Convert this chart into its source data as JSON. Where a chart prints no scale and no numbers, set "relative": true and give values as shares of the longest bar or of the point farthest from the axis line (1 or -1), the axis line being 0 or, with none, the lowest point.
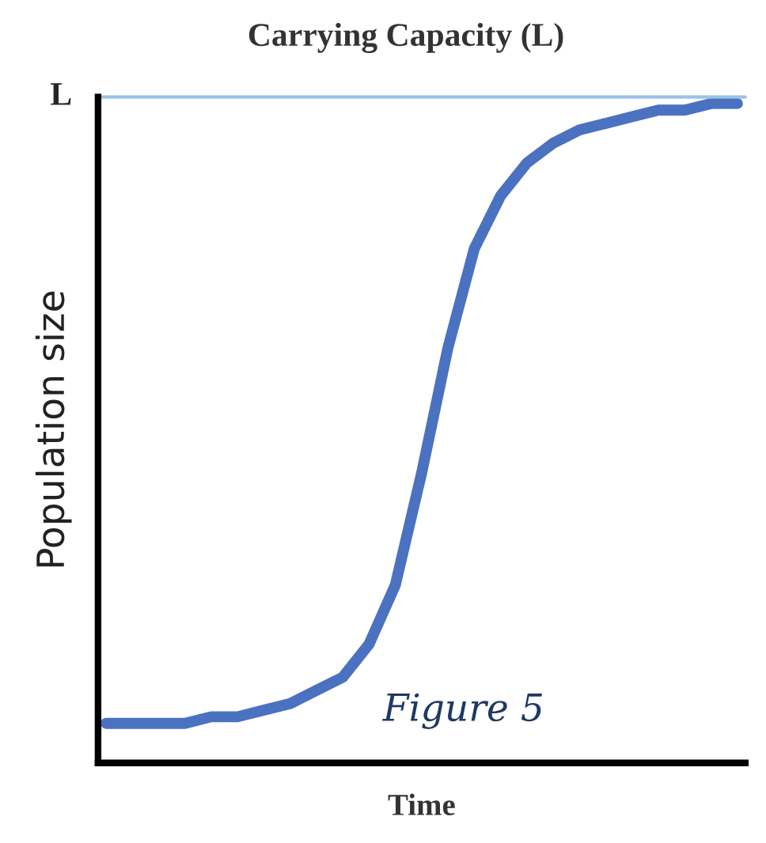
{
  "chart_data": {
    "type": "line",
    "title": "Carrying Capacity (L)",
    "xlabel": "Time",
    "ylabel": "Population size",
    "relative": true,
    "categories": [
      null,
      null,
      null,
      null,
      null,
      null,
      null,
      null,
      null,
      null,
      null,
      null,
      null,
      null,
      null,
      null,
      null,
      null,
      null,
      null,
      null,
      null,
      null,
      null,
      null
    ],
    "series": [
      {
        "color": "#4a72c0",
        "values": [
          0.06,
          0.06,
          0.06,
          0.06,
          0.07,
          0.07,
          0.08,
          0.09,
          0.11,
          0.13,
          0.18,
          0.27,
          0.44,
          0.63,
          0.78,
          0.86,
          0.91,
          0.94,
          0.96,
          0.97,
          0.98,
          0.99,
          0.99,
          1.0,
          1.0
        ]
      }
    ],
    "ref_lines": [
      {
        "axis": "y",
        "value": 1.01,
        "label": "L",
        "color": "#9cc3e6"
      }
    ],
    "annotations": [
      "Figure 5"
    ],
    "legend": false,
    "marker": "none",
    "line_style": "solid"
  }
}
